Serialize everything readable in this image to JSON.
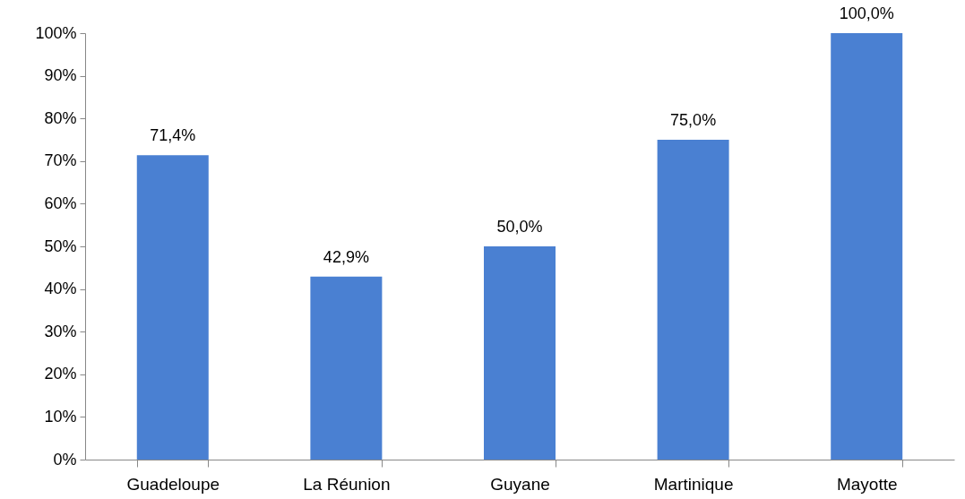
{
  "chart_data": {
    "type": "bar",
    "categories": [
      "Guadeloupe",
      "La Réunion",
      "Guyane",
      "Martinique",
      "Mayotte"
    ],
    "values": [
      71.4,
      42.9,
      50.0,
      75.0,
      100.0
    ],
    "value_labels": [
      "71,4%",
      "42,9%",
      "50,0%",
      "75,0%",
      "100,0%"
    ],
    "color": "#4a80d2",
    "ylim": [
      0,
      100
    ],
    "yticks": [
      {
        "value": 0,
        "label": "0%"
      },
      {
        "value": 10,
        "label": "10%"
      },
      {
        "value": 20,
        "label": "20%"
      },
      {
        "value": 30,
        "label": "30%"
      },
      {
        "value": 40,
        "label": "40%"
      },
      {
        "value": 50,
        "label": "50%"
      },
      {
        "value": 60,
        "label": "60%"
      },
      {
        "value": 70,
        "label": "70%"
      },
      {
        "value": 80,
        "label": "80%"
      },
      {
        "value": 90,
        "label": "90%"
      },
      {
        "value": 100,
        "label": "100%"
      }
    ],
    "grid": false
  }
}
